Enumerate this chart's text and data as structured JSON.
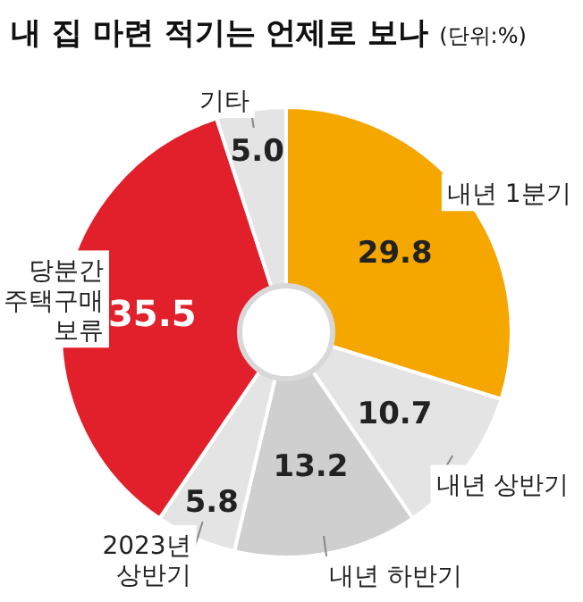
{
  "chart_data": {
    "type": "donut",
    "title": "내 집 마련 적기는 언제로 보나",
    "subtitle": "(단위:%)",
    "categories": [
      "내년 1분기",
      "내년 상반기",
      "내년 하반기",
      "2023년 상반기",
      "당분간 주택구매 보류",
      "기타"
    ],
    "values": [
      29.8,
      10.7,
      13.2,
      5.8,
      35.5,
      5.0
    ],
    "colors": [
      "#f5a700",
      "#e4e4e4",
      "#cfcfcf",
      "#e4e4e4",
      "#e2202c",
      "#e4e4e4"
    ],
    "value_labels": [
      "29.8",
      "10.7",
      "13.2",
      "5.8",
      "35.5",
      "5.0"
    ]
  }
}
